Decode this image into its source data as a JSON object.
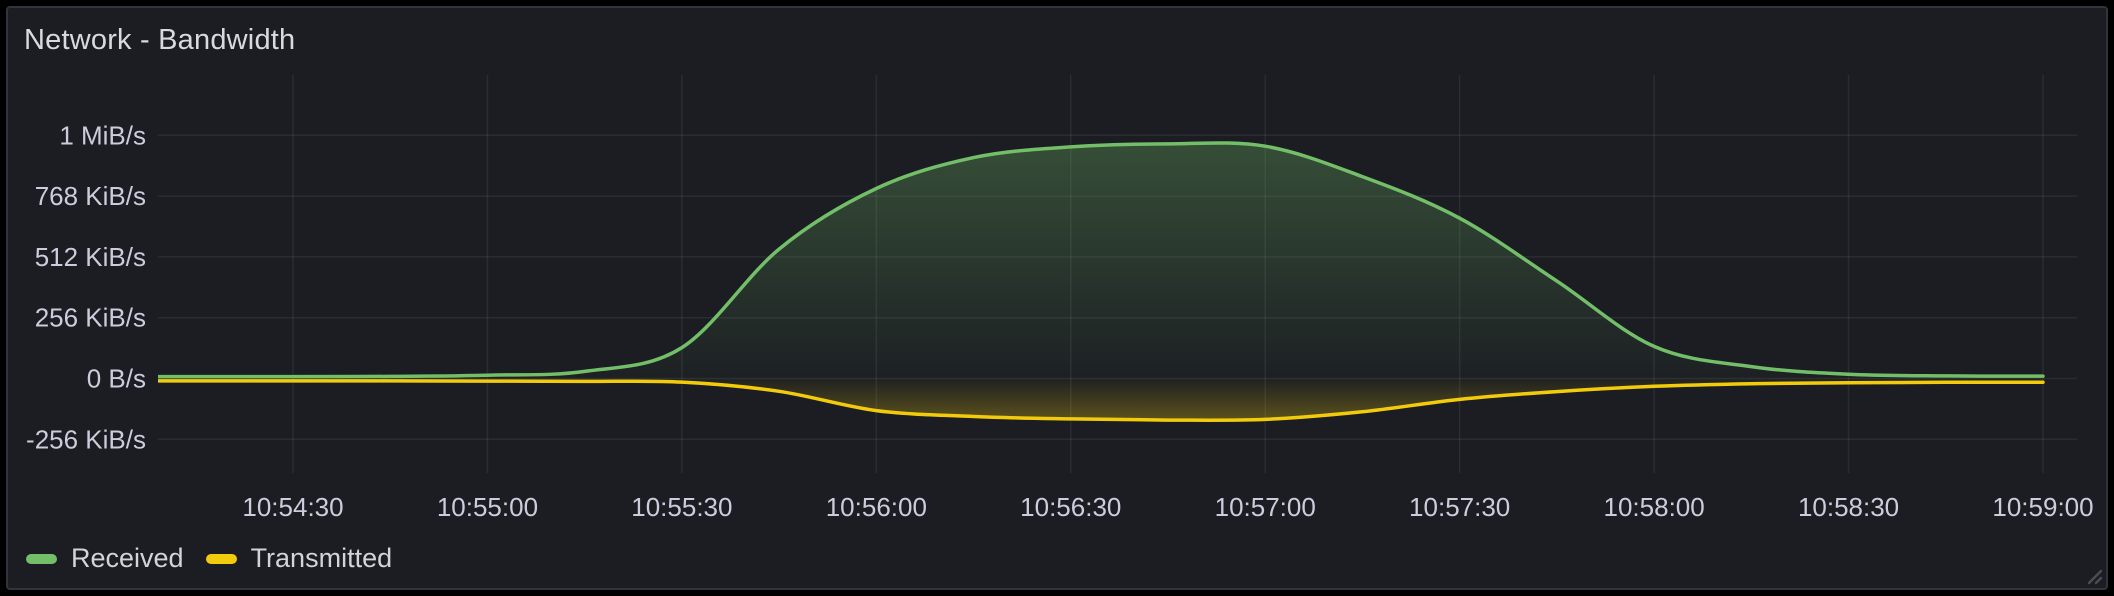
{
  "panel": {
    "title": "Network - Bandwidth"
  },
  "colors": {
    "page_bg": "#000000",
    "panel_bg": "#1b1d22",
    "panel_border": "#32343b",
    "title_text": "#d9dae0",
    "axis_text": "#ccccdc",
    "legend_text": "#d2d3db",
    "grid": "rgba(204,204,220,0.09)",
    "received_green": "#73BF69",
    "transmitted_yellow": "#F2CC0C",
    "resize_handle": "#4a4d53"
  },
  "chart_data": {
    "type": "area",
    "title": "Network - Bandwidth",
    "x_ticks": [
      "10:54:30",
      "10:55:00",
      "10:55:30",
      "10:56:00",
      "10:56:30",
      "10:57:00",
      "10:57:30",
      "10:58:00",
      "10:58:30",
      "10:59:00"
    ],
    "y_ticks": [
      {
        "label": "1 MiB/s",
        "value": 1024
      },
      {
        "label": "768 KiB/s",
        "value": 768
      },
      {
        "label": "512 KiB/s",
        "value": 512
      },
      {
        "label": "256 KiB/s",
        "value": 256
      },
      {
        "label": "0 B/s",
        "value": 0
      },
      {
        "label": "-256 KiB/s",
        "value": -256
      }
    ],
    "y_unit": "KiB/s",
    "ylim": [
      -400,
      1280
    ],
    "x_range": [
      "10:54:09",
      "10:59:00"
    ],
    "grid": true,
    "legend_position": "bottom-left",
    "series": [
      {
        "name": "Received",
        "color": "#73BF69",
        "points": [
          [
            "10:54:09",
            8
          ],
          [
            "10:54:30",
            8
          ],
          [
            "10:54:45",
            9
          ],
          [
            "10:55:00",
            14
          ],
          [
            "10:55:15",
            30
          ],
          [
            "10:55:30",
            130
          ],
          [
            "10:55:45",
            545
          ],
          [
            "10:56:00",
            800
          ],
          [
            "10:56:15",
            930
          ],
          [
            "10:56:30",
            975
          ],
          [
            "10:56:45",
            988
          ],
          [
            "10:57:00",
            978
          ],
          [
            "10:57:15",
            850
          ],
          [
            "10:57:30",
            675
          ],
          [
            "10:57:45",
            410
          ],
          [
            "10:58:00",
            135
          ],
          [
            "10:58:15",
            50
          ],
          [
            "10:58:30",
            18
          ],
          [
            "10:58:45",
            11
          ],
          [
            "10:59:00",
            10
          ]
        ]
      },
      {
        "name": "Transmitted",
        "color": "#F2CC0C",
        "points": [
          [
            "10:54:09",
            -10
          ],
          [
            "10:54:30",
            -10
          ],
          [
            "10:54:45",
            -10
          ],
          [
            "10:55:00",
            -11
          ],
          [
            "10:55:15",
            -12
          ],
          [
            "10:55:30",
            -15
          ],
          [
            "10:55:45",
            -54
          ],
          [
            "10:56:00",
            -135
          ],
          [
            "10:56:15",
            -160
          ],
          [
            "10:56:30",
            -170
          ],
          [
            "10:56:45",
            -175
          ],
          [
            "10:57:00",
            -172
          ],
          [
            "10:57:15",
            -140
          ],
          [
            "10:57:30",
            -88
          ],
          [
            "10:57:45",
            -55
          ],
          [
            "10:58:00",
            -33
          ],
          [
            "10:58:15",
            -22
          ],
          [
            "10:58:30",
            -18
          ],
          [
            "10:58:45",
            -16
          ],
          [
            "10:59:00",
            -16
          ]
        ]
      }
    ]
  }
}
